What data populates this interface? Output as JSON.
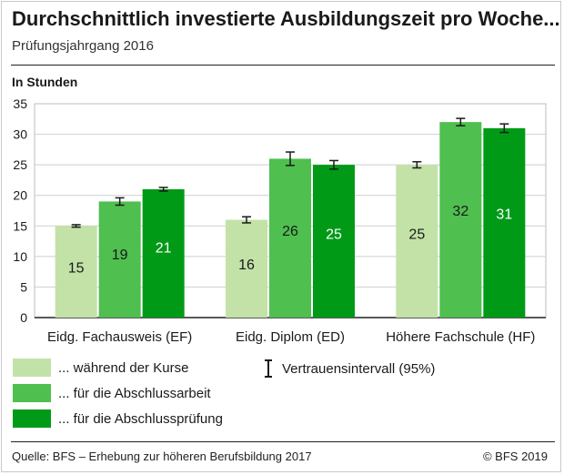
{
  "header": {
    "title": "Durchschnittlich investierte Ausbildungszeit pro Woche...",
    "subtitle": "Prüfungsjahrgang 2016"
  },
  "chart_data": {
    "type": "bar",
    "title": "Durchschnittlich investierte Ausbildungszeit pro Woche...",
    "subtitle": "Prüfungsjahrgang 2016",
    "ylabel": "In Stunden",
    "xlabel": "",
    "ylim": [
      0,
      35
    ],
    "yticks": [
      0,
      5,
      10,
      15,
      20,
      25,
      30,
      35
    ],
    "grid": true,
    "legend_position": "bottom",
    "categories": [
      "Eidg. Fachausweis (EF)",
      "Eidg. Diplom (ED)",
      "Höhere Fachschule (HF)"
    ],
    "series": [
      {
        "name": "... während der Kurse",
        "color": "#c3e2a7",
        "values": [
          15,
          16,
          25
        ],
        "ci_low": [
          14.8,
          15.5,
          24.5
        ],
        "ci_high": [
          15.2,
          16.5,
          25.5
        ]
      },
      {
        "name": "... für die Abschlussarbeit",
        "color": "#4fbf4f",
        "values": [
          19,
          26,
          32
        ],
        "ci_low": [
          18.4,
          24.9,
          31.4
        ],
        "ci_high": [
          19.6,
          27.1,
          32.6
        ]
      },
      {
        "name": "... für die Abschlussprüfung",
        "color": "#009a17",
        "values": [
          21,
          25,
          31
        ],
        "ci_low": [
          20.7,
          24.3,
          30.3
        ],
        "ci_high": [
          21.3,
          25.7,
          31.7
        ]
      }
    ],
    "ci_legend": "Vertrauensintervall (95%)"
  },
  "footer": {
    "source": "Quelle: BFS – Erhebung zur höheren Berufsbildung 2017",
    "copyright": "© BFS 2019"
  }
}
